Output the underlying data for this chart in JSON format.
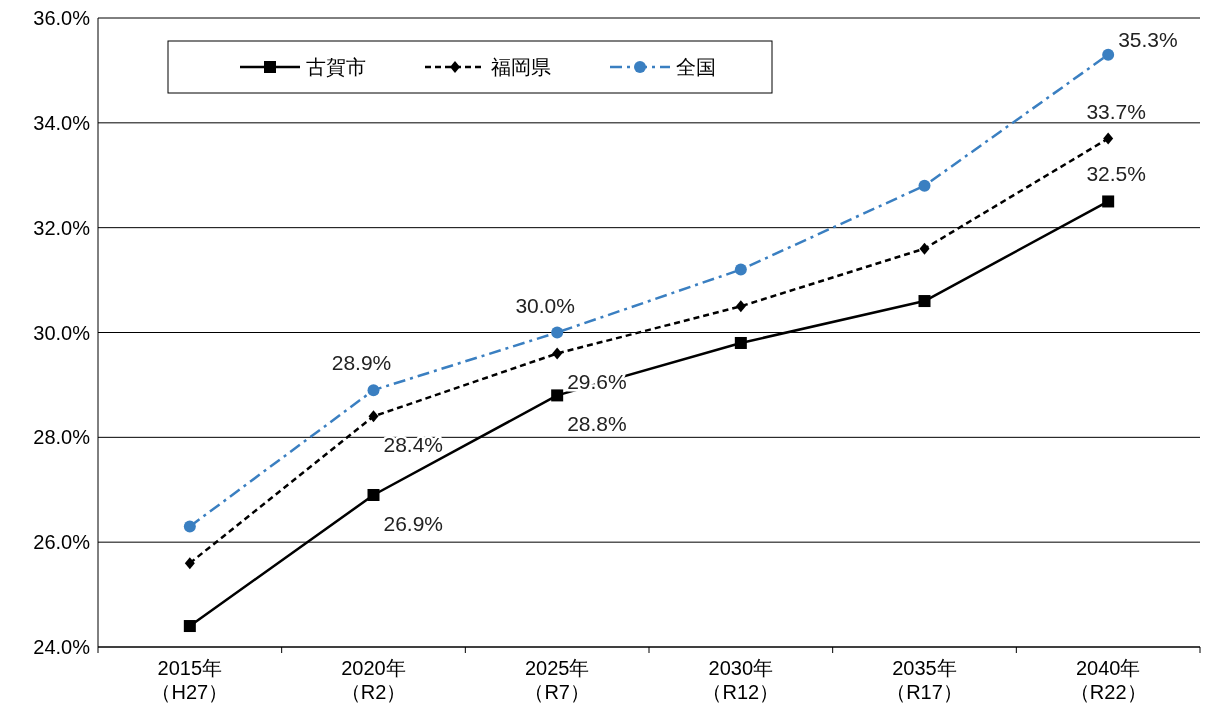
{
  "chart_data": {
    "type": "line",
    "categories": [
      "2015年（H27）",
      "2020年（R2）",
      "2025年（R7）",
      "2030年（R12）",
      "2035年（R17）",
      "2040年（R22）"
    ],
    "ylim": [
      24,
      36
    ],
    "yticks": [
      {
        "value": 24,
        "label": "24.0%"
      },
      {
        "value": 26,
        "label": "26.0%"
      },
      {
        "value": 28,
        "label": "28.0%"
      },
      {
        "value": 30,
        "label": "30.0%"
      },
      {
        "value": 32,
        "label": "32.0%"
      },
      {
        "value": 34,
        "label": "34.0%"
      },
      {
        "value": 36,
        "label": "36.0%"
      }
    ],
    "grid": "y",
    "legend": "top left",
    "series": [
      {
        "name": "古賀市",
        "color": "#000000",
        "marker": "square",
        "line_style": "solid",
        "values": [
          24.4,
          26.9,
          28.8,
          29.8,
          30.6,
          32.5
        ],
        "value_labels": [
          null,
          "26.9%",
          "28.8%",
          null,
          null,
          "32.5%"
        ]
      },
      {
        "name": "福岡県",
        "color": "#000000",
        "marker": "diamond",
        "line_style": "dashed",
        "values": [
          25.6,
          28.4,
          29.6,
          30.5,
          31.6,
          33.7
        ],
        "value_labels": [
          null,
          "28.4%",
          "29.6%",
          null,
          null,
          "33.7%"
        ]
      },
      {
        "name": "全国",
        "color": "#3a7fc1",
        "marker": "circle",
        "line_style": "dashdot",
        "values": [
          26.3,
          28.9,
          30.0,
          31.2,
          32.8,
          35.3
        ],
        "value_labels": [
          null,
          "28.9%",
          "30.0%",
          null,
          null,
          "35.3%"
        ]
      }
    ]
  }
}
